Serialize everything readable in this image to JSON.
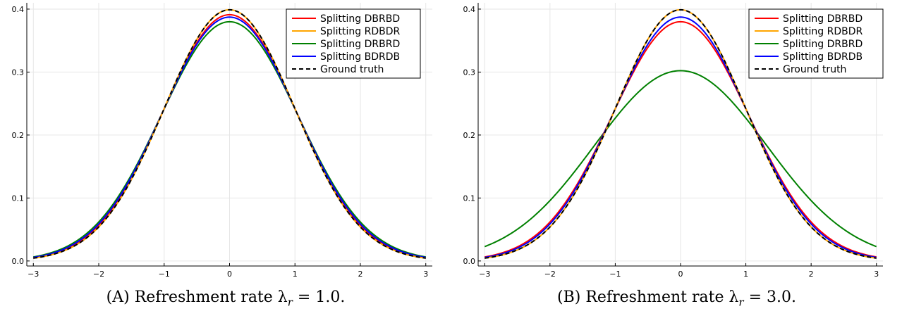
{
  "chart_data": [
    {
      "type": "line",
      "title": "",
      "xlabel": "",
      "ylabel": "",
      "xlim": [
        -3.1,
        3.1
      ],
      "ylim": [
        -0.008,
        0.41
      ],
      "xticks": [
        -3,
        -2,
        -1,
        0,
        1,
        2,
        3
      ],
      "xtick_labels": [
        "−3",
        "−2",
        "−1",
        "0",
        "1",
        "2",
        "3"
      ],
      "yticks": [
        0.0,
        0.1,
        0.2,
        0.3,
        0.4
      ],
      "ytick_labels": [
        "0.0",
        "0.1",
        "0.2",
        "0.3",
        "0.4"
      ],
      "grid": true,
      "legend_position": "top-right",
      "series": [
        {
          "name": "Splitting DBRBD",
          "color": "#ff0000",
          "dash": "solid",
          "sigma": 1.02
        },
        {
          "name": "Splitting RDBDR",
          "color": "#ffa500",
          "dash": "solid",
          "sigma": 1.0
        },
        {
          "name": "Splitting DRBRD",
          "color": "#008000",
          "dash": "solid",
          "sigma": 1.05
        },
        {
          "name": "Splitting BDRDB",
          "color": "#0000ff",
          "dash": "solid",
          "sigma": 1.03
        },
        {
          "name": "Ground truth",
          "color": "#000000",
          "dash": "dashed",
          "sigma": 1.0
        }
      ],
      "caption_label": "(A)",
      "caption_text": "Refreshment rate λ",
      "caption_subscript": "r",
      "caption_value": " = 1.0."
    },
    {
      "type": "line",
      "title": "",
      "xlabel": "",
      "ylabel": "",
      "xlim": [
        -3.1,
        3.1
      ],
      "ylim": [
        -0.008,
        0.41
      ],
      "xticks": [
        -3,
        -2,
        -1,
        0,
        1,
        2,
        3
      ],
      "xtick_labels": [
        "−3",
        "−2",
        "−1",
        "0",
        "1",
        "2",
        "3"
      ],
      "yticks": [
        0.0,
        0.1,
        0.2,
        0.3,
        0.4
      ],
      "ytick_labels": [
        "0.0",
        "0.1",
        "0.2",
        "0.3",
        "0.4"
      ],
      "grid": true,
      "legend_position": "top-right",
      "series": [
        {
          "name": "Splitting DBRBD",
          "color": "#ff0000",
          "dash": "solid",
          "sigma": 1.05
        },
        {
          "name": "Splitting RDBDR",
          "color": "#ffa500",
          "dash": "solid",
          "sigma": 1.0
        },
        {
          "name": "Splitting DRBRD",
          "color": "#008000",
          "dash": "solid",
          "sigma": 1.32
        },
        {
          "name": "Splitting BDRDB",
          "color": "#0000ff",
          "dash": "solid",
          "sigma": 1.03
        },
        {
          "name": "Ground truth",
          "color": "#000000",
          "dash": "dashed",
          "sigma": 1.0
        }
      ],
      "caption_label": "(B)",
      "caption_text": "Refreshment rate λ",
      "caption_subscript": "r",
      "caption_value": " = 3.0."
    }
  ]
}
